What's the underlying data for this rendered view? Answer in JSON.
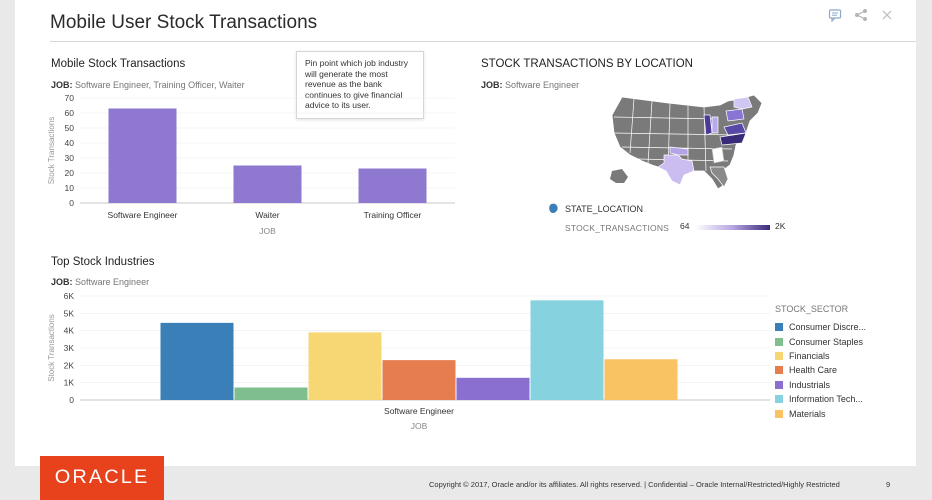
{
  "page": {
    "title": "Mobile User Stock Transactions",
    "icons": [
      "comment-icon",
      "share-icon",
      "close-icon"
    ]
  },
  "panel1": {
    "title": "Mobile Stock Transactions",
    "filter_label": "JOB:",
    "filter_value": "Software Engineer, Training Officer, Waiter",
    "tooltip": "Pin point which job industry will generate the most revenue as the bank continues to give financial advice to its user."
  },
  "panel2": {
    "title": "STOCK TRANSACTIONS BY LOCATION",
    "filter_label": "JOB:",
    "filter_value": "Software Engineer",
    "location_label": "STATE_LOCATION",
    "measure_label": "STOCK_TRANSACTIONS",
    "min_label": "64",
    "max_label": "2K"
  },
  "panel3": {
    "title": "Top Stock Industries",
    "filter_label": "JOB:",
    "filter_value": "Software Engineer",
    "legend_title": "STOCK_SECTOR"
  },
  "footer": {
    "logo": "ORACLE",
    "copyright": "Copyright © 2017, Oracle and/or its affiliates. All rights reserved.  |  Confidential – Oracle Internal/Restricted/Highly Restricted",
    "page_number": "9"
  },
  "colors": {
    "bar_purple": "#8e78d0",
    "oracle_red": "#e8421d"
  },
  "chart_data": [
    {
      "type": "bar",
      "categories": [
        "Software Engineer",
        "Waiter",
        "Training Officer"
      ],
      "values": [
        63,
        25,
        23
      ],
      "xlabel": "JOB",
      "ylabel": "Stock Transactions",
      "ylim": [
        0,
        70
      ],
      "yticks": [
        "0",
        "10",
        "20",
        "30",
        "40",
        "50",
        "60",
        "70"
      ]
    },
    {
      "type": "bar",
      "categories": [
        "Software Engineer"
      ],
      "xlabel": "JOB",
      "ylabel": "Stock Transactions",
      "ylim": [
        0,
        6000
      ],
      "yticks": [
        "0",
        "1K",
        "2K",
        "3K",
        "4K",
        "5K",
        "6K"
      ],
      "legend_placement": "right",
      "series": [
        {
          "name": "Consumer Discre...",
          "values": [
            4450
          ],
          "color": "#3a7fb8"
        },
        {
          "name": "Consumer Staples",
          "values": [
            720
          ],
          "color": "#7fbf8e"
        },
        {
          "name": "Financials",
          "values": [
            3900
          ],
          "color": "#f7d774"
        },
        {
          "name": "Health Care",
          "values": [
            2300
          ],
          "color": "#e57d4e"
        },
        {
          "name": "Industrials",
          "values": [
            1280
          ],
          "color": "#8a6fd0"
        },
        {
          "name": "Information Tech...",
          "values": [
            5750
          ],
          "color": "#86d3df"
        },
        {
          "name": "Materials",
          "values": [
            2350
          ],
          "color": "#f9c263"
        }
      ]
    }
  ]
}
